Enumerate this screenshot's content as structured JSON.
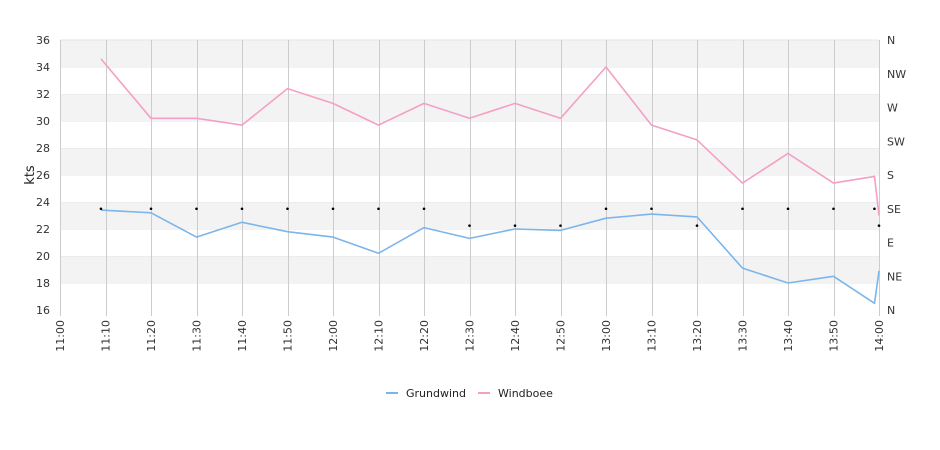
{
  "chart_data": {
    "type": "line",
    "ylabel": "kts",
    "ylim": [
      16,
      36
    ],
    "yticks": [
      16,
      18,
      20,
      22,
      24,
      26,
      28,
      30,
      32,
      34,
      36
    ],
    "xlim": [
      "11:00",
      "14:00"
    ],
    "xticks": [
      "11:00",
      "11:10",
      "11:20",
      "11:30",
      "11:40",
      "11:50",
      "12:00",
      "12:10",
      "12:20",
      "12:30",
      "12:40",
      "12:50",
      "13:00",
      "13:10",
      "13:20",
      "13:30",
      "13:40",
      "13:50",
      "14:00"
    ],
    "y2_ticks": [
      "N",
      "NE",
      "E",
      "SE",
      "S",
      "SW",
      "W",
      "NW",
      "N"
    ],
    "y2_range_degrees": [
      0,
      360
    ],
    "alternating_bands": true,
    "vertical_grid": true,
    "legend_position": "bottom-center",
    "series": [
      {
        "name": "Grundwind",
        "color": "#7cb5ec",
        "points": [
          [
            "11:09",
            23.4
          ],
          [
            "11:20",
            23.2
          ],
          [
            "11:30",
            21.4
          ],
          [
            "11:40",
            22.5
          ],
          [
            "11:50",
            21.8
          ],
          [
            "12:00",
            21.4
          ],
          [
            "12:10",
            20.2
          ],
          [
            "12:20",
            22.1
          ],
          [
            "12:30",
            21.3
          ],
          [
            "12:40",
            22.0
          ],
          [
            "12:50",
            21.9
          ],
          [
            "13:00",
            22.8
          ],
          [
            "13:10",
            23.1
          ],
          [
            "13:20",
            22.9
          ],
          [
            "13:30",
            19.1
          ],
          [
            "13:40",
            18.0
          ],
          [
            "13:50",
            18.5
          ],
          [
            "13:59",
            16.5
          ],
          [
            "14:00",
            18.9
          ]
        ]
      },
      {
        "name": "Windboee",
        "color": "#f4a0c6",
        "points": [
          [
            "11:09",
            34.6
          ],
          [
            "11:20",
            30.2
          ],
          [
            "11:30",
            30.2
          ],
          [
            "11:40",
            29.7
          ],
          [
            "11:50",
            32.4
          ],
          [
            "12:00",
            31.3
          ],
          [
            "12:10",
            29.7
          ],
          [
            "12:20",
            31.3
          ],
          [
            "12:30",
            30.2
          ],
          [
            "12:40",
            31.3
          ],
          [
            "12:50",
            30.2
          ],
          [
            "13:00",
            34.0
          ],
          [
            "13:10",
            29.7
          ],
          [
            "13:20",
            28.6
          ],
          [
            "13:30",
            25.4
          ],
          [
            "13:40",
            27.6
          ],
          [
            "13:50",
            25.4
          ],
          [
            "13:59",
            25.9
          ],
          [
            "14:00",
            23.0
          ]
        ]
      },
      {
        "name": "",
        "type": "scatter",
        "axis": "y2",
        "color": "#000000",
        "points": [
          [
            "11:09",
            135
          ],
          [
            "11:20",
            135
          ],
          [
            "11:30",
            135
          ],
          [
            "11:40",
            135
          ],
          [
            "11:50",
            135
          ],
          [
            "12:00",
            135
          ],
          [
            "12:10",
            135
          ],
          [
            "12:20",
            135
          ],
          [
            "12:30",
            112.5
          ],
          [
            "12:40",
            112.5
          ],
          [
            "12:50",
            112.5
          ],
          [
            "13:00",
            135
          ],
          [
            "13:10",
            135
          ],
          [
            "13:20",
            112.5
          ],
          [
            "13:30",
            135
          ],
          [
            "13:40",
            135
          ],
          [
            "13:50",
            135
          ],
          [
            "13:59",
            135
          ],
          [
            "14:00",
            112.5
          ]
        ]
      }
    ]
  }
}
